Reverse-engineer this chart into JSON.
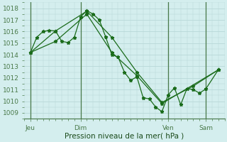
{
  "bg_color": "#d4eeee",
  "grid_color": "#b8d8d8",
  "line_color": "#1a6b1a",
  "marker_color": "#1a6b1a",
  "vline_color": "#4a7a4a",
  "ylabel_ticks": [
    1009,
    1010,
    1011,
    1012,
    1013,
    1014,
    1015,
    1016,
    1017,
    1018
  ],
  "ylim": [
    1008.5,
    1018.5
  ],
  "xlabel": "Pression niveau de la mer( hPa )",
  "xtick_pos": [
    0,
    8,
    22,
    28
  ],
  "xtick_labels": [
    "Jeu",
    "Dim",
    "Ven",
    "Sam"
  ],
  "vlines": [
    0,
    8,
    22,
    28
  ],
  "xlim": [
    -1,
    31
  ],
  "series": [
    [
      [
        0,
        1014.2
      ],
      [
        1,
        1015.5
      ],
      [
        2,
        1016.0
      ],
      [
        3,
        1016.1
      ],
      [
        4,
        1016.05
      ],
      [
        5,
        1015.15
      ],
      [
        6,
        1015.05
      ],
      [
        7,
        1015.5
      ],
      [
        8,
        1017.25
      ],
      [
        9,
        1017.8
      ],
      [
        10,
        1017.5
      ],
      [
        11,
        1017.0
      ],
      [
        12,
        1015.55
      ],
      [
        13,
        1014.0
      ],
      [
        14,
        1013.8
      ],
      [
        15,
        1012.5
      ],
      [
        16,
        1011.8
      ],
      [
        17,
        1012.1
      ],
      [
        18,
        1010.3
      ],
      [
        19,
        1010.2
      ],
      [
        20,
        1009.5
      ],
      [
        21,
        1009.1
      ],
      [
        22,
        1010.55
      ],
      [
        23,
        1011.15
      ],
      [
        24,
        1009.7
      ],
      [
        25,
        1011.1
      ],
      [
        26,
        1011.0
      ],
      [
        27,
        1010.7
      ],
      [
        28,
        1011.05
      ],
      [
        30,
        1012.7
      ]
    ],
    [
      [
        0,
        1014.2
      ],
      [
        4,
        1016.05
      ],
      [
        9,
        1017.75
      ],
      [
        13,
        1015.5
      ],
      [
        17,
        1012.5
      ],
      [
        21,
        1009.9
      ],
      [
        26,
        1011.3
      ],
      [
        30,
        1012.7
      ]
    ],
    [
      [
        0,
        1014.2
      ],
      [
        4,
        1015.15
      ],
      [
        9,
        1017.5
      ],
      [
        13,
        1014.2
      ],
      [
        17,
        1012.2
      ],
      [
        21,
        1009.8
      ],
      [
        30,
        1012.7
      ]
    ]
  ]
}
